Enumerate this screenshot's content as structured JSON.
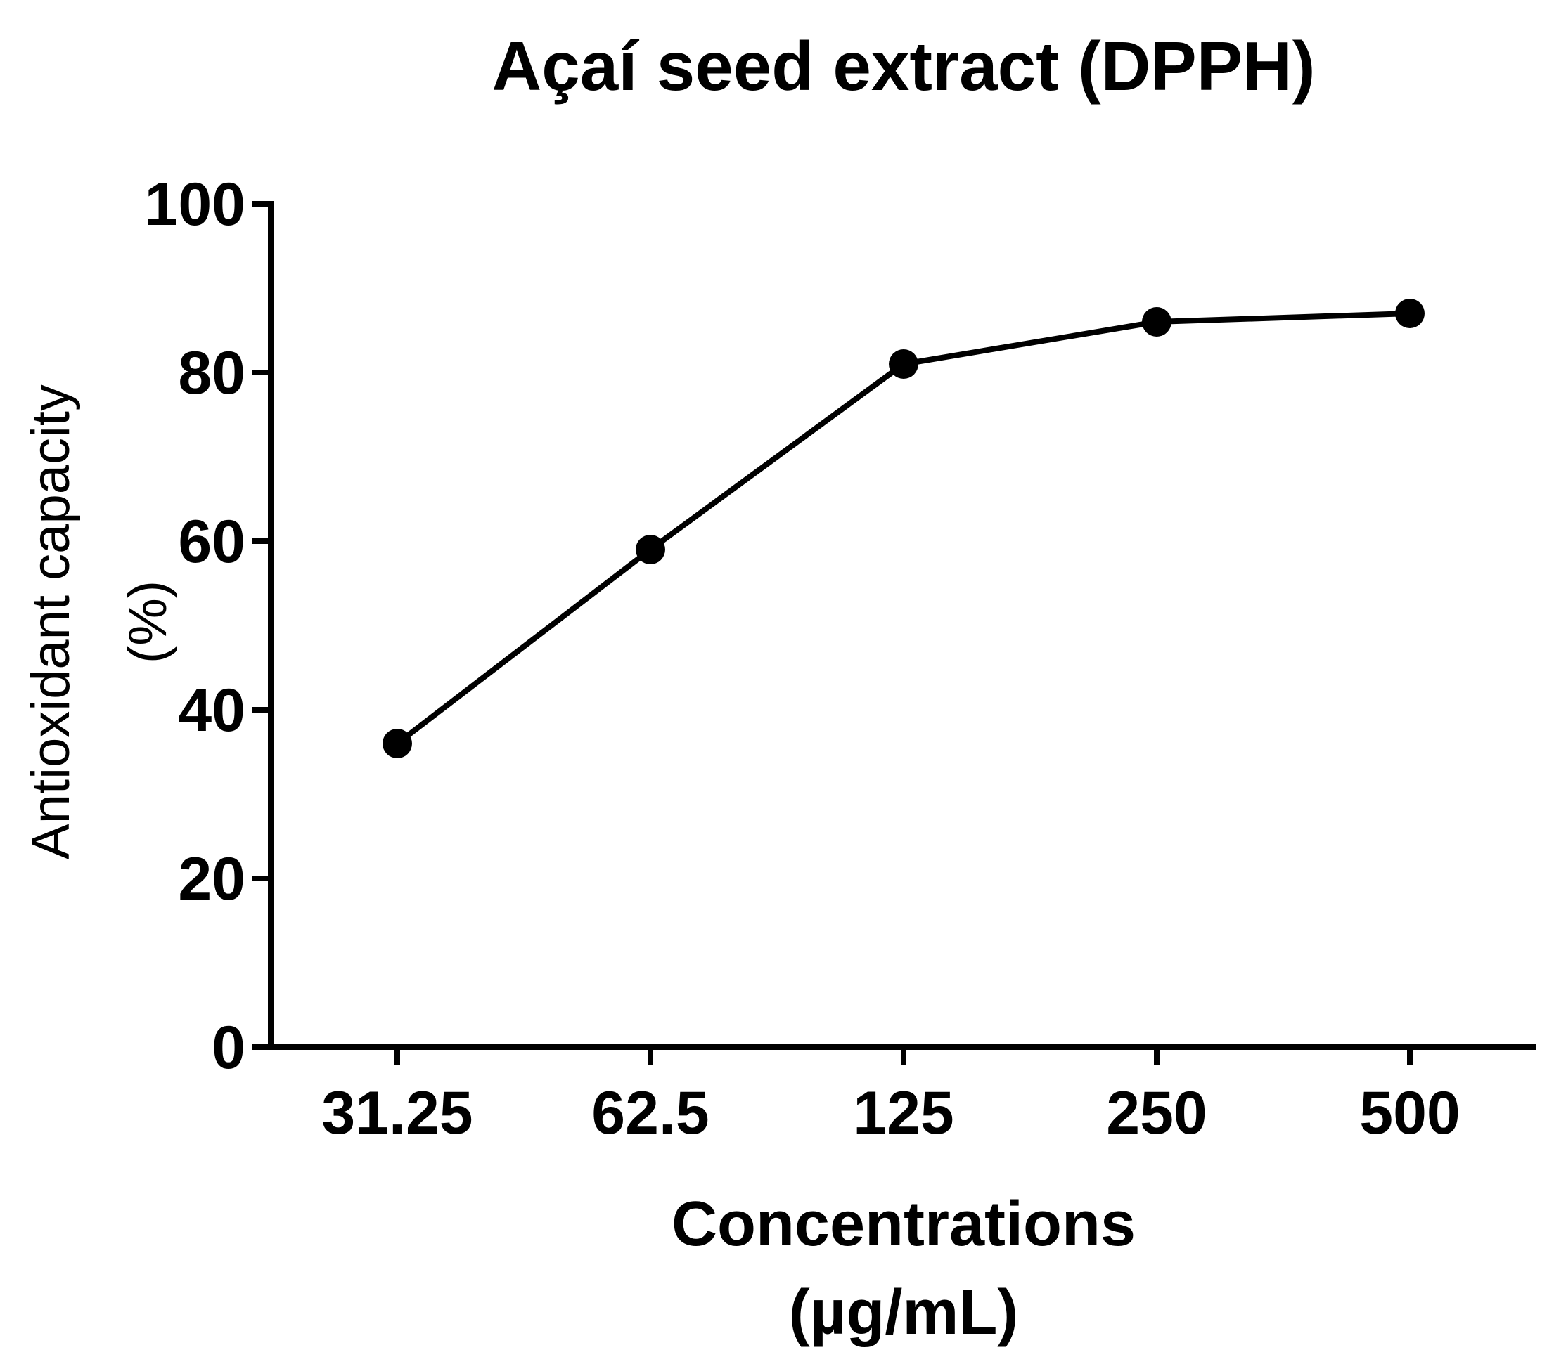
{
  "chart_data": {
    "type": "line",
    "title": "Açaí seed extract (DPPH)",
    "xlabel_line1": "Concentrations",
    "xlabel_line2": "(µg/mL)",
    "ylabel_line1": "Antioxidant capacity",
    "ylabel_line2": "(%)",
    "categories": [
      "31.25",
      "62.5",
      "125",
      "250",
      "500"
    ],
    "series": [
      {
        "values": [
          36,
          59,
          81,
          86,
          87
        ]
      }
    ],
    "ylim": [
      0,
      100
    ],
    "yticks": [
      "0",
      "20",
      "40",
      "60",
      "80",
      "100"
    ],
    "grid": false,
    "legend": "none",
    "colors": {
      "line": "#000000",
      "marker": "#000000"
    }
  }
}
